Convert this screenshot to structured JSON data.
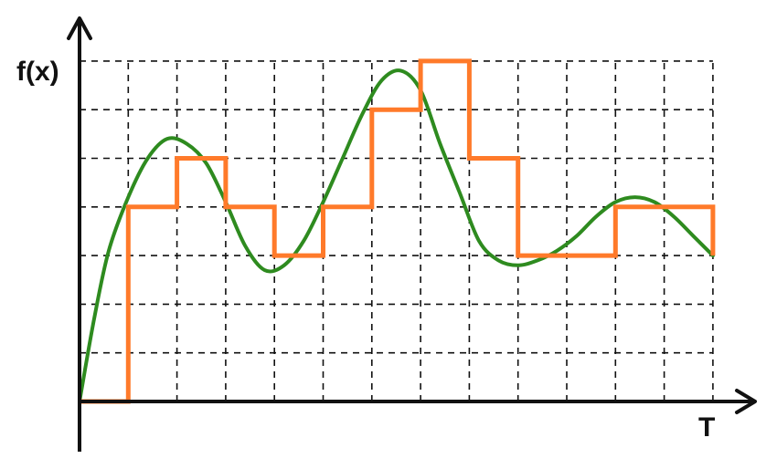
{
  "chart_data": {
    "type": "line",
    "xlabel": "T",
    "ylabel": "f(x)",
    "grid": true,
    "xlim": [
      0,
      13
    ],
    "ylim": [
      0,
      7
    ],
    "x_ticks": [
      0,
      1,
      2,
      3,
      4,
      5,
      6,
      7,
      8,
      9,
      10,
      11,
      12,
      13
    ],
    "y_ticks": [
      0,
      1,
      2,
      3,
      4,
      5,
      6,
      7
    ],
    "colors": {
      "curve": "#2e8b1f",
      "step": "#ff7a2a",
      "axis": "#111111"
    },
    "series": [
      {
        "kind": "continuous",
        "x": [
          0,
          0.3,
          0.6,
          1.0,
          1.4,
          1.8,
          2.2,
          2.6,
          3.0,
          3.4,
          3.8,
          4.2,
          4.6,
          5.0,
          5.4,
          5.8,
          6.2,
          6.6,
          7.0,
          7.4,
          7.8,
          8.2,
          8.6,
          9.0,
          9.4,
          9.8,
          10.2,
          10.6,
          11.0,
          11.4,
          11.8,
          12.2,
          12.6,
          13.0
        ],
        "y": [
          0,
          1.7,
          3.1,
          4.2,
          5.0,
          5.4,
          5.3,
          4.9,
          4.1,
          3.2,
          2.7,
          2.8,
          3.3,
          4.1,
          5.0,
          5.9,
          6.6,
          6.8,
          6.4,
          5.3,
          4.3,
          3.3,
          2.9,
          2.8,
          2.9,
          3.1,
          3.4,
          3.8,
          4.1,
          4.2,
          4.1,
          3.8,
          3.4,
          3.0
        ]
      },
      {
        "kind": "step",
        "x": [
          0,
          1,
          2,
          3,
          4,
          5,
          6,
          7,
          8,
          9,
          10,
          11,
          12,
          13
        ],
        "y": [
          0,
          4,
          5,
          4,
          3,
          4,
          6,
          7,
          5,
          3,
          3,
          4,
          4,
          3
        ]
      }
    ]
  }
}
